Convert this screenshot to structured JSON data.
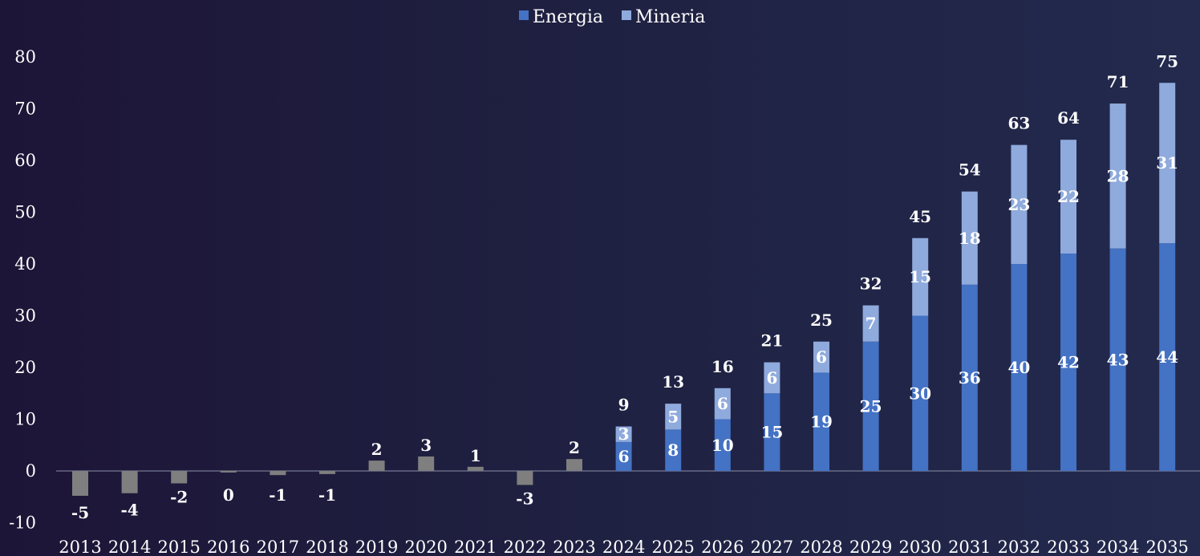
{
  "chart_data": {
    "type": "bar",
    "stacked": true,
    "title": "",
    "xlabel": "",
    "ylabel": "",
    "ylim": [
      -10,
      80
    ],
    "yticks": [
      -10,
      0,
      10,
      20,
      30,
      40,
      50,
      60,
      70,
      80
    ],
    "grid": false,
    "legend_position": "top-center",
    "legend": [
      "Energia",
      "Mineria"
    ],
    "categories": [
      "2013",
      "2014",
      "2015",
      "2016",
      "2017",
      "2018",
      "2019",
      "2020",
      "2021",
      "2022",
      "2023",
      "2024",
      "2025",
      "2026",
      "2027",
      "2028",
      "2029",
      "2030",
      "2031",
      "2032",
      "2033",
      "2034",
      "2035"
    ],
    "historical": {
      "color": "#7f7f7f",
      "values": [
        -4.8,
        -4.3,
        -2.4,
        -0.3,
        -0.8,
        -0.6,
        2,
        2.8,
        0.8,
        -2.7,
        2.3
      ],
      "labels": [
        "-5",
        "-4",
        "-2",
        "0",
        "-1",
        "-1",
        "2",
        "3",
        "1",
        "-3",
        "2"
      ]
    },
    "series": [
      {
        "name": "Energia",
        "color": "#4472c4",
        "values": [
          null,
          null,
          null,
          null,
          null,
          null,
          null,
          null,
          null,
          null,
          null,
          5.6,
          8,
          10,
          15,
          19,
          25,
          30,
          36,
          40,
          42,
          43,
          44
        ],
        "labels": [
          "",
          "",
          "",
          "",
          "",
          "",
          "",
          "",
          "",
          "",
          "",
          "6",
          "8",
          "10",
          "15",
          "19",
          "25",
          "30",
          "36",
          "40",
          "42",
          "43",
          "44"
        ]
      },
      {
        "name": "Mineria",
        "color": "#8faadc",
        "values": [
          null,
          null,
          null,
          null,
          null,
          null,
          null,
          null,
          null,
          null,
          null,
          3,
          5,
          6,
          6,
          6,
          7,
          15,
          18,
          23,
          22,
          28,
          31
        ],
        "labels": [
          "",
          "",
          "",
          "",
          "",
          "",
          "",
          "",
          "",
          "",
          "",
          "3",
          "5",
          "6",
          "6",
          "6",
          "7",
          "15",
          "18",
          "23",
          "22",
          "28",
          "31"
        ]
      }
    ],
    "totals": [
      "",
      "",
      "",
      "",
      "",
      "",
      "",
      "",
      "",
      "",
      "",
      "9",
      "13",
      "16",
      "21",
      "25",
      "32",
      "45",
      "54",
      "63",
      "64",
      "71",
      "75"
    ]
  }
}
